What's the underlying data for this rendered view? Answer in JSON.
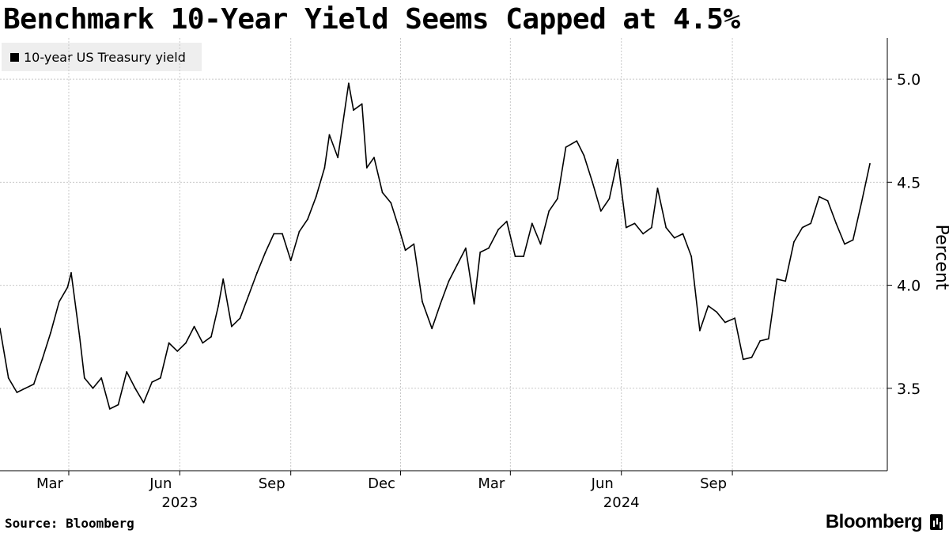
{
  "title": "Benchmark 10-Year Yield Seems Capped at 4.5%",
  "source": "Source: Bloomberg",
  "brand": "Bloomberg",
  "colors": {
    "series": "#000000",
    "grid": "#c8c8c8",
    "axis": "#000000",
    "legend_bg": "#eeeeee"
  },
  "chart_data": {
    "type": "line",
    "title": "Benchmark 10-Year Yield Seems Capped at 4.5%",
    "xlabel": "",
    "ylabel": "Percent",
    "y_axis_side": "right",
    "ylim": [
      3.1,
      5.2
    ],
    "y_ticks": [
      3.5,
      4.0,
      4.5,
      5.0
    ],
    "y_tick_labels": [
      "3.5",
      "4.0",
      "4.5",
      "5.0"
    ],
    "x_range": [
      "2023-01-03",
      "2024-12-24"
    ],
    "x_ticks": [
      {
        "date": "2023-03-01",
        "label": "Mar"
      },
      {
        "date": "2023-06-01",
        "label": "Jun"
      },
      {
        "date": "2023-09-01",
        "label": "Sep"
      },
      {
        "date": "2023-12-01",
        "label": "Dec"
      },
      {
        "date": "2024-03-01",
        "label": "Mar"
      },
      {
        "date": "2024-06-01",
        "label": "Jun"
      },
      {
        "date": "2024-09-01",
        "label": "Sep"
      }
    ],
    "year_labels": [
      {
        "date": "2023-06-01",
        "label": "2023"
      },
      {
        "date": "2024-06-01",
        "label": "2024"
      }
    ],
    "grid": true,
    "legend_position": "top-left",
    "series": [
      {
        "name": "10-year US Treasury yield",
        "x": [
          "2023-01-03",
          "2023-01-10",
          "2023-01-17",
          "2023-01-24",
          "2023-01-31",
          "2023-02-07",
          "2023-02-14",
          "2023-02-21",
          "2023-02-28",
          "2023-03-03",
          "2023-03-10",
          "2023-03-14",
          "2023-03-21",
          "2023-03-28",
          "2023-04-04",
          "2023-04-11",
          "2023-04-18",
          "2023-04-25",
          "2023-05-02",
          "2023-05-09",
          "2023-05-16",
          "2023-05-23",
          "2023-05-30",
          "2023-06-06",
          "2023-06-13",
          "2023-06-20",
          "2023-06-27",
          "2023-07-03",
          "2023-07-07",
          "2023-07-14",
          "2023-07-21",
          "2023-07-28",
          "2023-08-04",
          "2023-08-11",
          "2023-08-18",
          "2023-08-25",
          "2023-09-01",
          "2023-09-08",
          "2023-09-15",
          "2023-09-22",
          "2023-09-29",
          "2023-10-03",
          "2023-10-10",
          "2023-10-19",
          "2023-10-23",
          "2023-10-30",
          "2023-11-03",
          "2023-11-09",
          "2023-11-16",
          "2023-11-23",
          "2023-11-30",
          "2023-12-05",
          "2023-12-12",
          "2023-12-19",
          "2023-12-27",
          "2024-01-03",
          "2024-01-10",
          "2024-01-17",
          "2024-01-24",
          "2024-01-31",
          "2024-02-05",
          "2024-02-12",
          "2024-02-20",
          "2024-02-27",
          "2024-03-05",
          "2024-03-12",
          "2024-03-19",
          "2024-03-26",
          "2024-04-02",
          "2024-04-09",
          "2024-04-16",
          "2024-04-25",
          "2024-05-01",
          "2024-05-08",
          "2024-05-15",
          "2024-05-22",
          "2024-05-29",
          "2024-06-05",
          "2024-06-12",
          "2024-06-19",
          "2024-06-26",
          "2024-07-01",
          "2024-07-08",
          "2024-07-15",
          "2024-07-22",
          "2024-07-29",
          "2024-08-05",
          "2024-08-12",
          "2024-08-19",
          "2024-08-26",
          "2024-09-03",
          "2024-09-10",
          "2024-09-17",
          "2024-09-24",
          "2024-10-01",
          "2024-10-08",
          "2024-10-15",
          "2024-10-22",
          "2024-10-29",
          "2024-11-05",
          "2024-11-12",
          "2024-11-19",
          "2024-11-26",
          "2024-12-03",
          "2024-12-10",
          "2024-12-17",
          "2024-12-24"
        ],
        "values": [
          3.79,
          3.55,
          3.48,
          3.5,
          3.52,
          3.64,
          3.77,
          3.92,
          3.99,
          4.06,
          3.75,
          3.55,
          3.5,
          3.55,
          3.4,
          3.42,
          3.58,
          3.5,
          3.43,
          3.53,
          3.55,
          3.72,
          3.68,
          3.72,
          3.8,
          3.72,
          3.75,
          3.9,
          4.03,
          3.8,
          3.84,
          3.95,
          4.06,
          4.16,
          4.25,
          4.25,
          4.12,
          4.26,
          4.32,
          4.43,
          4.57,
          4.73,
          4.62,
          4.98,
          4.85,
          4.88,
          4.57,
          4.62,
          4.45,
          4.4,
          4.27,
          4.17,
          4.2,
          3.92,
          3.79,
          3.91,
          4.02,
          4.1,
          4.18,
          3.91,
          4.16,
          4.18,
          4.27,
          4.31,
          4.14,
          4.14,
          4.3,
          4.2,
          4.36,
          4.42,
          4.67,
          4.7,
          4.63,
          4.5,
          4.36,
          4.42,
          4.61,
          4.28,
          4.3,
          4.25,
          4.28,
          4.47,
          4.28,
          4.23,
          4.25,
          4.14,
          3.78,
          3.9,
          3.87,
          3.82,
          3.84,
          3.64,
          3.65,
          3.73,
          3.74,
          4.03,
          4.02,
          4.21,
          4.28,
          4.3,
          4.43,
          4.41,
          4.3,
          4.2,
          4.22,
          4.4,
          4.59
        ]
      }
    ]
  }
}
